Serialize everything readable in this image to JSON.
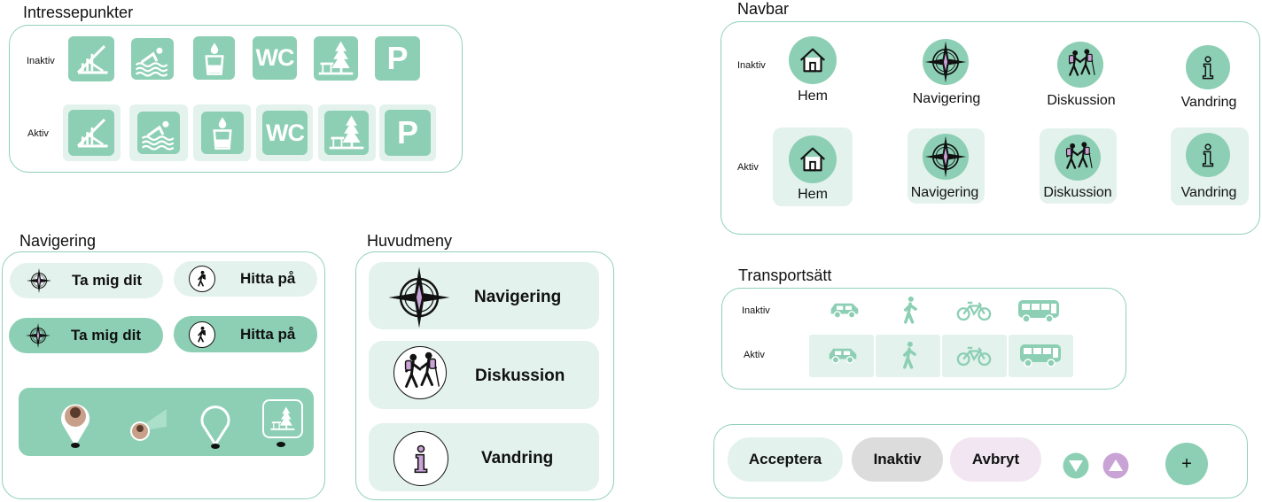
{
  "colors": {
    "accent": "#8ccfb4",
    "accent_light": "#e3f2ec",
    "border": "#8fd0b7",
    "inactive_gray": "#dcdcdc",
    "cancel_lilac": "#f1e6f1",
    "purple": "#c9a3d6"
  },
  "poi": {
    "title": "Intressepunkter",
    "inactive_label": "Inaktiv",
    "active_label": "Aktiv",
    "icons": [
      "ramp-icon",
      "swimming-icon",
      "drinking-water-icon",
      "wc-icon",
      "picnic-forest-icon",
      "parking-icon"
    ],
    "wc_text": "WC",
    "p_text": "P"
  },
  "navbar": {
    "title": "Navbar",
    "inactive_label": "Inaktiv",
    "active_label": "Aktiv",
    "items": [
      {
        "label": "Hem",
        "icon": "home-icon"
      },
      {
        "label": "Navigering",
        "icon": "compass-icon"
      },
      {
        "label": "Diskussion",
        "icon": "hikers-chat-icon"
      },
      {
        "label": "Vandring",
        "icon": "info-icon"
      }
    ]
  },
  "navigering": {
    "title": "Navigering",
    "take_me": "Ta mig dit",
    "find": "Hitta på",
    "markers": [
      "profile-pin-icon",
      "profile-location-icon",
      "location-pin-icon",
      "forest-pin-icon"
    ]
  },
  "huvudmeny": {
    "title": "Huvudmeny",
    "items": [
      {
        "label": "Navigering",
        "icon": "compass-icon"
      },
      {
        "label": "Diskussion",
        "icon": "hikers-chat-icon"
      },
      {
        "label": "Vandring",
        "icon": "info-icon"
      }
    ]
  },
  "transport": {
    "title": "Transportsätt",
    "inactive_label": "Inaktiv",
    "active_label": "Aktiv",
    "modes": [
      "car-icon",
      "walking-icon",
      "bicycle-icon",
      "bus-icon"
    ]
  },
  "buttons": {
    "accept": "Acceptera",
    "inactive": "Inaktiv",
    "cancel": "Avbryt",
    "plus": "+"
  }
}
